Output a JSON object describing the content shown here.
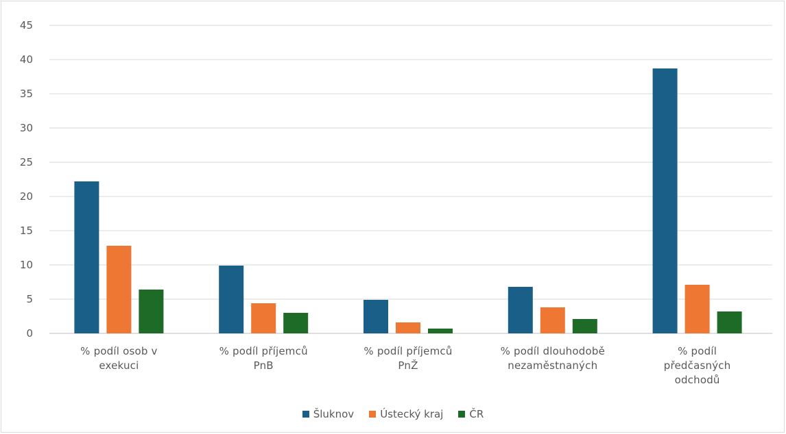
{
  "chart_data": {
    "type": "bar",
    "title": "",
    "xlabel": "",
    "ylabel": "",
    "ylim": [
      0,
      45
    ],
    "yticks": [
      0,
      5,
      10,
      15,
      20,
      25,
      30,
      35,
      40,
      45
    ],
    "grid": true,
    "legend_position": "bottom",
    "categories": [
      [
        "% podíl osob v",
        "exekuci"
      ],
      [
        "% podíl příjemců",
        "PnB"
      ],
      [
        "% podíl příjemců",
        "PnŽ"
      ],
      [
        "% podíl dlouhodobě",
        "nezaměstnaných"
      ],
      [
        "% podíl",
        "předčasných",
        "odchodů"
      ]
    ],
    "series": [
      {
        "name": "Šluknov",
        "color": "#1a5f87",
        "values": [
          22.2,
          9.9,
          4.9,
          6.8,
          38.7
        ]
      },
      {
        "name": "Ústecký kraj",
        "color": "#ee7733",
        "values": [
          12.8,
          4.4,
          1.6,
          3.8,
          7.1
        ]
      },
      {
        "name": "ČR",
        "color": "#1e6b27",
        "values": [
          6.4,
          3.0,
          0.7,
          2.1,
          3.2
        ]
      }
    ]
  }
}
